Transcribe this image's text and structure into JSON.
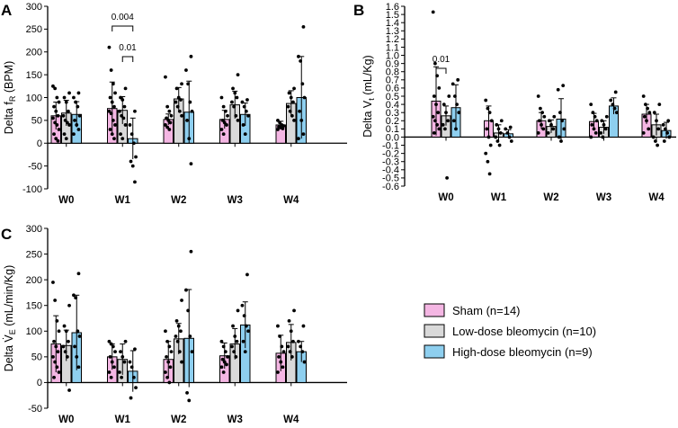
{
  "legend": [
    {
      "label": "Sham (n=14)",
      "color": "#f4b6e3"
    },
    {
      "label": "Low-dose bleomycin (n=10)",
      "color": "#d9d9d9"
    },
    {
      "label": "High-dose bleomycin (n=9)",
      "color": "#8ecfef"
    }
  ],
  "chart_data": [
    {
      "type": "bar",
      "panel": "A",
      "ylabel": "Delta fR (BPM)",
      "ylabel_main": "Delta f",
      "ylabel_sub": "R",
      "ylabel_tail": " (BPM)",
      "ylim": [
        -100,
        300
      ],
      "yticks": [
        -100,
        -50,
        0,
        50,
        100,
        150,
        200,
        250,
        300
      ],
      "ytick_labels": [
        "-100",
        "-50",
        "0",
        "50",
        "100",
        "150",
        "200",
        "250",
        "300"
      ],
      "categories": [
        "W0",
        "W1",
        "W2",
        "W3",
        "W4"
      ],
      "series": [
        {
          "name": "Sham (n=14)",
          "values": [
            60,
            76,
            52,
            52,
            40
          ],
          "err": [
            30,
            58,
            12,
            20,
            8
          ],
          "points": [
            [
              125,
              120,
              100,
              90,
              80,
              70,
              60,
              55,
              45,
              40,
              30,
              20,
              10,
              5
            ],
            [
              210,
              160,
              130,
              110,
              100,
              90,
              80,
              70,
              65,
              50,
              40,
              30,
              20,
              10
            ],
            [
              145,
              80,
              70,
              60,
              55,
              50,
              45,
              40,
              35,
              30
            ],
            [
              100,
              80,
              70,
              60,
              50,
              45,
              40,
              30,
              20
            ],
            [
              50,
              45,
              40,
              38,
              36,
              34,
              32,
              30
            ]
          ]
        },
        {
          "name": "Low-dose bleomycin (n=10)",
          "values": [
            66,
            72,
            97,
            84,
            87
          ],
          "err": [
            28,
            30,
            25,
            30,
            28
          ],
          "points": [
            [
              110,
              100,
              90,
              70,
              60,
              50,
              45,
              40,
              20,
              10
            ],
            [
              120,
              100,
              95,
              80,
              70,
              60,
              55,
              40,
              20,
              10
            ],
            [
              130,
              120,
              100,
              95,
              90,
              80,
              70,
              60
            ],
            [
              150,
              120,
              110,
              100,
              90,
              80,
              60,
              50
            ],
            [
              120,
              110,
              100,
              90,
              80,
              70,
              60,
              50
            ]
          ]
        },
        {
          "name": "High-dose bleomycin (n=9)",
          "values": [
            63,
            10,
            68,
            63,
            100
          ],
          "err": [
            28,
            45,
            68,
            25,
            90
          ],
          "points": [
            [
              110,
              100,
              90,
              80,
              60,
              50,
              40,
              30,
              20
            ],
            [
              70,
              40,
              20,
              0,
              -30,
              -40,
              -50,
              -85
            ],
            [
              190,
              160,
              130,
              90,
              70,
              50,
              10,
              -45
            ],
            [
              95,
              90,
              80,
              70,
              60,
              40,
              20
            ],
            [
              255,
              190,
              180,
              130,
              100,
              70,
              50,
              20,
              10
            ]
          ]
        }
      ],
      "annotations": [
        {
          "text": "0.004",
          "from": "W1 Sham",
          "to": "W1 High-dose bleomycin"
        },
        {
          "text": "0.01",
          "from": "W1 Low-dose bleomycin",
          "to": "W1 High-dose bleomycin"
        }
      ]
    },
    {
      "type": "bar",
      "panel": "B",
      "ylabel": "Delta Vt (mL/Kg)",
      "ylabel_main": "Delta V",
      "ylabel_sub": "t",
      "ylabel_tail": " (mL/Kg)",
      "ylim": [
        -0.6,
        1.6
      ],
      "yticks": [
        -0.6,
        -0.5,
        -0.4,
        -0.3,
        -0.2,
        -0.1,
        0,
        0.1,
        0.2,
        0.3,
        0.4,
        0.5,
        0.6,
        0.7,
        0.8,
        0.9,
        1.0,
        1.1,
        1.2,
        1.3,
        1.4,
        1.5,
        1.6
      ],
      "ytick_labels": [
        "-0.6",
        "-0.5",
        "-0.4",
        "-0.3",
        "-0.2",
        "-0.1",
        "0.0",
        "0.1",
        "0.2",
        "0.3",
        "0.4",
        "0.5",
        "0.6",
        "0.7",
        "0.8",
        "0.9",
        "1.0",
        "1.1",
        "1.2",
        "1.3",
        "1.4",
        "1.5",
        "1.6"
      ],
      "categories": [
        "W0",
        "W1",
        "W2",
        "W3",
        "W4"
      ],
      "series": [
        {
          "name": "Sham (n=14)",
          "values": [
            0.44,
            0.2,
            0.2,
            0.19,
            0.28
          ],
          "err": [
            0.42,
            0.18,
            0.1,
            0.1,
            0.12
          ],
          "points": [
            [
              1.53,
              0.9,
              0.75,
              0.6,
              0.5,
              0.4,
              0.3,
              0.25,
              0.2,
              0.15,
              0.1,
              0.05
            ],
            [
              0.45,
              0.35,
              0.3,
              0.2,
              0.1,
              0.0,
              -0.1,
              -0.2,
              -0.3,
              -0.45
            ],
            [
              0.5,
              0.35,
              0.3,
              0.25,
              0.2,
              0.15,
              0.1,
              0.05
            ],
            [
              0.4,
              0.3,
              0.25,
              0.2,
              0.15,
              0.1,
              0.05,
              0.0
            ],
            [
              0.5,
              0.4,
              0.35,
              0.3,
              0.25,
              0.2,
              0.1,
              0.05
            ]
          ]
        },
        {
          "name": "Low-dose bleomycin (n=10)",
          "values": [
            0.26,
            0.05,
            0.13,
            0.12,
            0.15
          ],
          "err": [
            0.12,
            0.1,
            0.08,
            0.08,
            0.13
          ],
          "points": [
            [
              0.5,
              0.4,
              0.3,
              0.2,
              0.15,
              0.1,
              -0.5
            ],
            [
              0.2,
              0.15,
              0.1,
              0.05,
              0.0,
              -0.05,
              -0.1
            ],
            [
              0.25,
              0.2,
              0.15,
              0.1,
              0.05
            ],
            [
              0.25,
              0.2,
              0.15,
              0.1,
              0.05,
              0.0
            ],
            [
              0.4,
              0.3,
              0.2,
              0.1,
              0.0,
              -0.05,
              -0.1
            ]
          ]
        },
        {
          "name": "High-dose bleomycin (n=9)",
          "values": [
            0.36,
            0.04,
            0.22,
            0.38,
            0.08
          ],
          "err": [
            0.28,
            0.05,
            0.25,
            0.1,
            0.1
          ],
          "points": [
            [
              0.7,
              0.65,
              0.5,
              0.4,
              0.3,
              0.2,
              0.1
            ],
            [
              0.12,
              0.1,
              0.05,
              0.0,
              -0.05
            ],
            [
              0.63,
              0.58,
              0.3,
              0.2,
              0.1,
              0.0,
              -0.05
            ],
            [
              0.55,
              0.45,
              0.4,
              0.35,
              0.3
            ],
            [
              0.2,
              0.15,
              0.1,
              0.05,
              0.0,
              -0.05
            ]
          ]
        }
      ],
      "annotations": [
        {
          "text": "0.01",
          "from": "W0 Sham",
          "to": "W0 Low-dose bleomycin"
        }
      ]
    },
    {
      "type": "bar",
      "panel": "C",
      "ylabel": "Delta V̇E (mL/min/Kg)",
      "ylabel_main": "Delta V̇",
      "ylabel_sub": "E",
      "ylabel_tail": " (mL/min/Kg)",
      "ylim": [
        -50,
        300
      ],
      "yticks": [
        -50,
        0,
        50,
        100,
        150,
        200,
        250,
        300
      ],
      "ytick_labels": [
        "-50",
        "0",
        "50",
        "100",
        "150",
        "200",
        "250",
        "300"
      ],
      "categories": [
        "W0",
        "W1",
        "W2",
        "W3",
        "W4"
      ],
      "series": [
        {
          "name": "Sham (n=14)",
          "values": [
            75,
            50,
            45,
            52,
            57
          ],
          "err": [
            55,
            25,
            35,
            25,
            35
          ],
          "points": [
            [
              195,
              160,
              120,
              100,
              80,
              70,
              60,
              50,
              40,
              30,
              20,
              10
            ],
            [
              80,
              75,
              70,
              60,
              50,
              40,
              30,
              20,
              10
            ],
            [
              100,
              80,
              70,
              60,
              50,
              40,
              30,
              20,
              10,
              0
            ],
            [
              80,
              70,
              60,
              50,
              45,
              40,
              35,
              30,
              20
            ],
            [
              110,
              90,
              70,
              60,
              50,
              40,
              30,
              20
            ]
          ]
        },
        {
          "name": "Low-dose bleomycin (n=10)",
          "values": [
            72,
            45,
            85,
            75,
            78
          ],
          "err": [
            30,
            30,
            30,
            30,
            35
          ],
          "points": [
            [
              150,
              110,
              100,
              80,
              70,
              60,
              50,
              -15
            ],
            [
              80,
              60,
              50,
              40,
              20,
              10
            ],
            [
              160,
              120,
              110,
              100,
              90,
              80,
              60,
              40
            ],
            [
              140,
              110,
              90,
              80,
              70,
              60,
              50
            ],
            [
              140,
              120,
              100,
              80,
              70,
              60,
              50
            ]
          ]
        },
        {
          "name": "High-dose bleomycin (n=9)",
          "values": [
            97,
            22,
            86,
            112,
            60
          ],
          "err": [
            73,
            40,
            95,
            45,
            20
          ],
          "points": [
            [
              212,
              170,
              165,
              100,
              90,
              70,
              50,
              30
            ],
            [
              65,
              40,
              30,
              10,
              -10,
              -30
            ],
            [
              255,
              180,
              140,
              90,
              60,
              -20,
              -35
            ],
            [
              210,
              150,
              130,
              110,
              100,
              80,
              60
            ],
            [
              110,
              80,
              70,
              60,
              40
            ]
          ]
        }
      ],
      "annotations": []
    }
  ]
}
